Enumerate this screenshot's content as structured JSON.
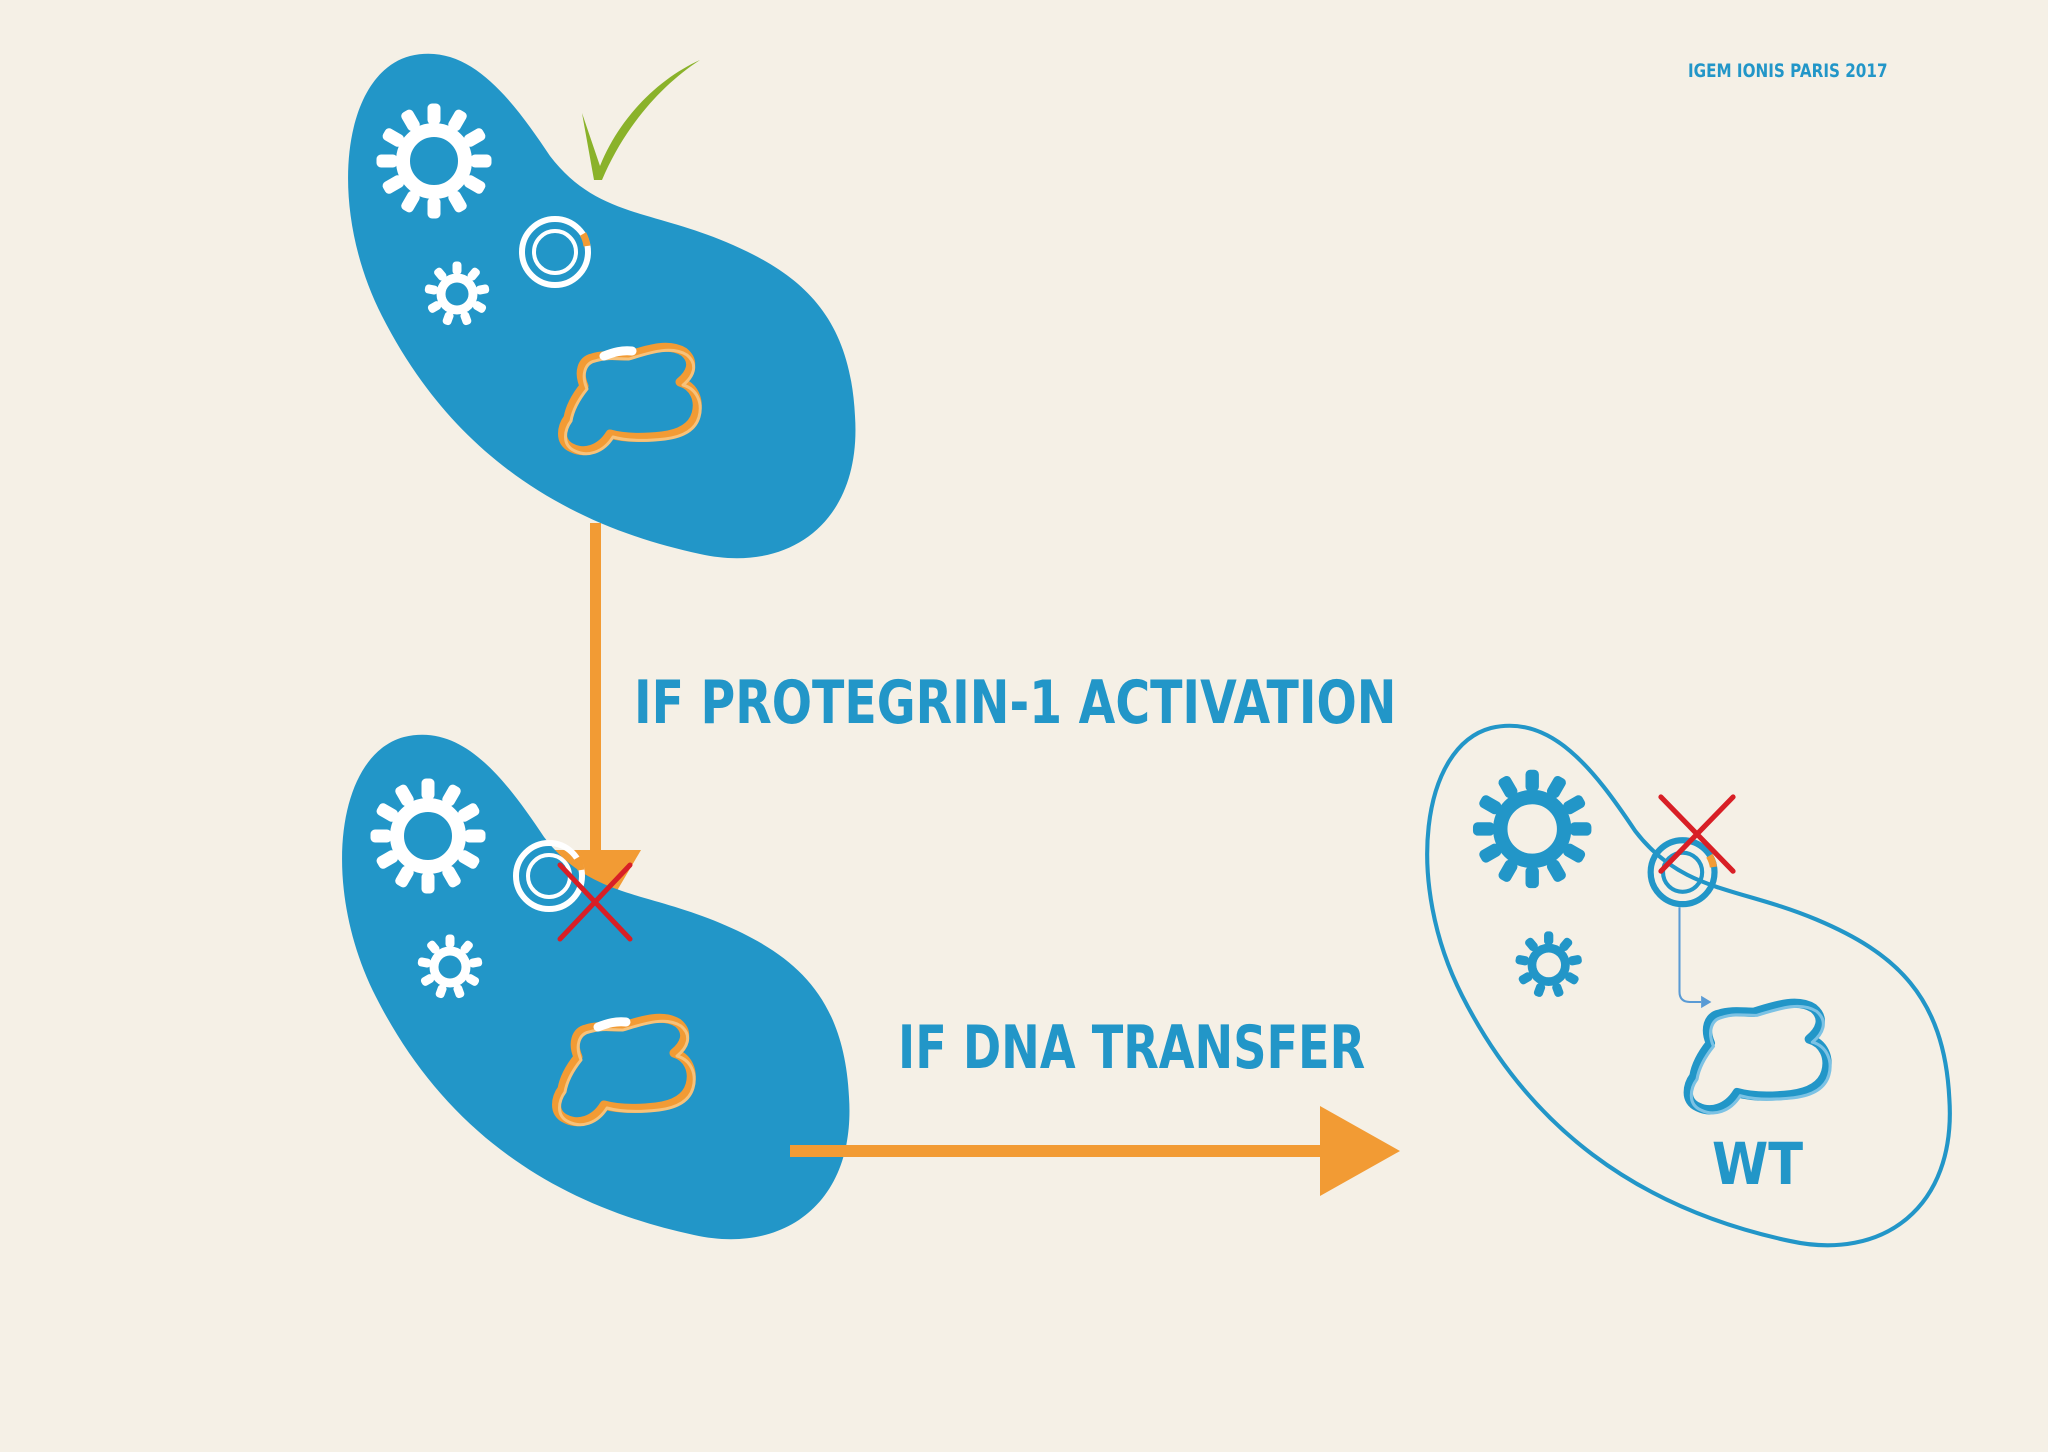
{
  "credit": "IGEM IONIS PARIS 2017",
  "labels": {
    "step1": "IF PROTEGRIN-1 ACTIVATION",
    "step2": "IF DNA TRANSFER",
    "wild_type": "WT"
  },
  "colors": {
    "background": "#f5f0e6",
    "cell_blue": "#2296c8",
    "arrow_orange": "#f29b34",
    "check_green": "#8ab22a",
    "cross_red": "#d81f26",
    "white": "#ffffff"
  },
  "cells": [
    {
      "id": "engineered-cell",
      "style": "filled",
      "status": "viable",
      "status_icon": "check-icon",
      "contains": [
        "gear-icon",
        "gear-icon",
        "plasmid-icon",
        "chromosome-icon"
      ]
    },
    {
      "id": "killed-cell",
      "style": "filled",
      "status": "dead",
      "status_icon": "cross-icon",
      "contains": [
        "gear-icon",
        "gear-icon",
        "plasmid-icon",
        "chromosome-icon"
      ]
    },
    {
      "id": "wild-type-cell",
      "style": "outline",
      "status": "dead",
      "status_icon": "cross-icon",
      "contains": [
        "gear-icon",
        "gear-icon",
        "plasmid-icon",
        "chromosome-icon"
      ]
    }
  ],
  "arrows": [
    {
      "id": "arrow-down",
      "direction": "down",
      "label": "step1"
    },
    {
      "id": "arrow-right",
      "direction": "right",
      "label": "step2"
    }
  ]
}
